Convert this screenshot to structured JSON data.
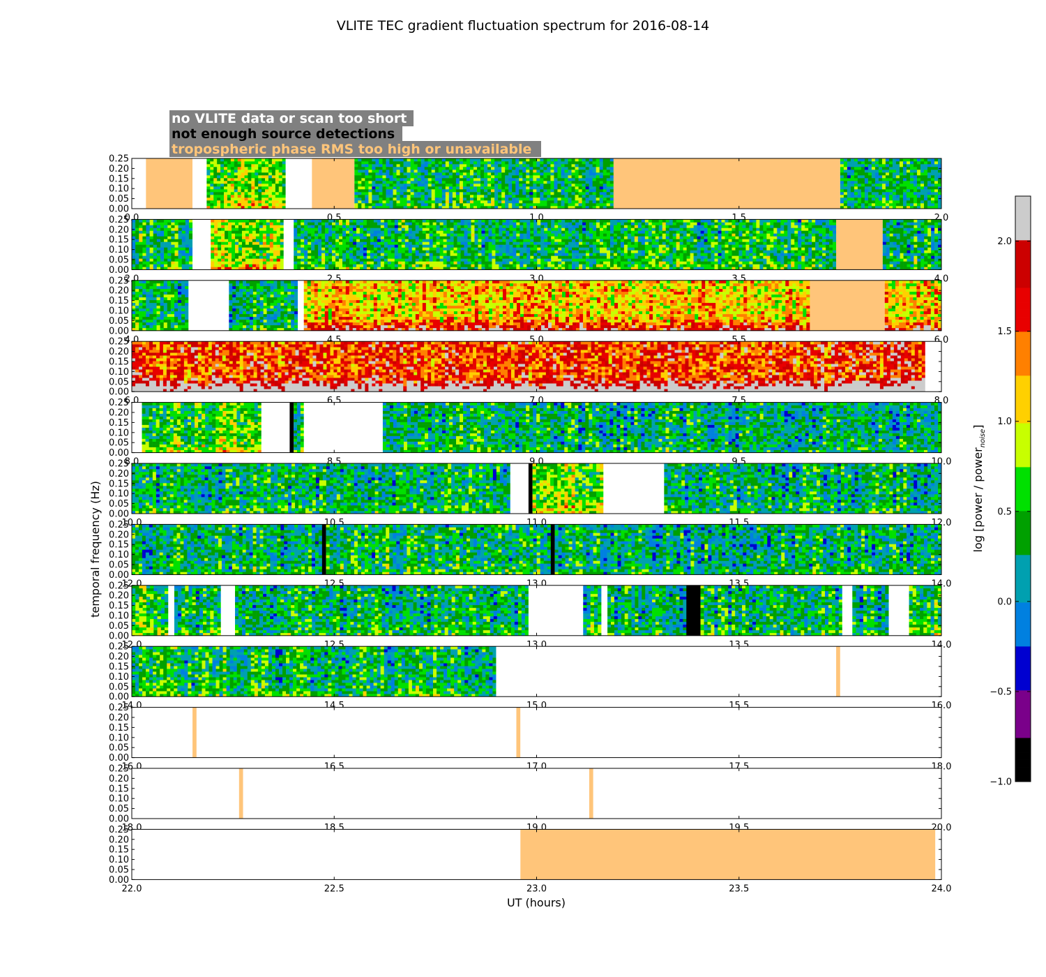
{
  "chart_data": {
    "type": "heatmap",
    "title": "VLITE TEC gradient fluctuation spectrum for 2016-08-14",
    "xlabel": "UT (hours)",
    "ylabel": "temporal frequency (Hz)",
    "colorbar_label": "log [power / power",
    "colorbar_label_subscript": "noise",
    "colorbar_label_close": "]",
    "colorbar_range": [
      -1.0,
      2.25
    ],
    "colorbar_ticks": [
      "−1.0",
      "−0.5",
      "0.0",
      "0.5",
      "1.0",
      "1.5",
      "2.0"
    ],
    "colorbar_tick_values": [
      -1.0,
      -0.5,
      0.0,
      0.5,
      1.0,
      1.5,
      2.0
    ],
    "colormap": [
      "#000000",
      "#7a008a",
      "#0000d0",
      "#0080e0",
      "#00a0b0",
      "#00a000",
      "#00e000",
      "#c8ff00",
      "#ffd000",
      "#ff8000",
      "#e80000",
      "#cc0000",
      "#cccccc"
    ],
    "ylim": [
      0.0,
      0.25
    ],
    "y_ticks": [
      "0.00",
      "0.05",
      "0.10",
      "0.15",
      "0.20",
      "0.25"
    ],
    "y_tick_values": [
      0.0,
      0.05,
      0.1,
      0.15,
      0.2,
      0.25
    ],
    "legend": [
      {
        "label": "no VLITE data or scan too short",
        "text_color": "#ffffff",
        "bg_color": "#808080"
      },
      {
        "label": "not enough source detections",
        "text_color": "#000000",
        "bg_color": "#808080"
      },
      {
        "label": "tropospheric phase RMS too high or unavailable",
        "text_color": "#ffc57a",
        "bg_color": "#808080"
      }
    ],
    "flag_colors": {
      "nodata": "#ffffff",
      "nodetect": "#000000",
      "tropo": "#ffc57a"
    },
    "panels": [
      {
        "xlim": [
          0.0,
          2.0
        ],
        "x_ticks": [
          "0.0",
          "0.5",
          "1.0",
          "1.5",
          "2.0"
        ],
        "x_tick_values": [
          0.0,
          0.5,
          1.0,
          1.5,
          2.0
        ],
        "segments": [
          {
            "start": 0.0,
            "end": 0.035,
            "kind": "nodata"
          },
          {
            "start": 0.035,
            "end": 0.15,
            "kind": "tropo"
          },
          {
            "start": 0.15,
            "end": 0.185,
            "kind": "nodata"
          },
          {
            "start": 0.185,
            "end": 0.38,
            "kind": "data",
            "level": 0.72
          },
          {
            "start": 0.38,
            "end": 0.445,
            "kind": "nodata"
          },
          {
            "start": 0.445,
            "end": 0.55,
            "kind": "tropo"
          },
          {
            "start": 0.55,
            "end": 1.19,
            "kind": "data",
            "level": 0.35
          },
          {
            "start": 1.19,
            "end": 1.75,
            "kind": "tropo"
          },
          {
            "start": 1.75,
            "end": 2.0,
            "kind": "data",
            "level": 0.3
          }
        ]
      },
      {
        "xlim": [
          2.0,
          4.0
        ],
        "x_ticks": [
          "2.0",
          "2.5",
          "3.0",
          "3.5",
          "4.0"
        ],
        "x_tick_values": [
          2.0,
          2.5,
          3.0,
          3.5,
          4.0
        ],
        "segments": [
          {
            "start": 2.0,
            "end": 2.15,
            "kind": "data",
            "level": 0.35
          },
          {
            "start": 2.15,
            "end": 2.195,
            "kind": "nodata"
          },
          {
            "start": 2.195,
            "end": 2.375,
            "kind": "data",
            "level": 0.75
          },
          {
            "start": 2.375,
            "end": 2.4,
            "kind": "nodata"
          },
          {
            "start": 2.4,
            "end": 3.74,
            "kind": "data",
            "level": 0.38
          },
          {
            "start": 3.74,
            "end": 3.855,
            "kind": "tropo"
          },
          {
            "start": 3.855,
            "end": 4.0,
            "kind": "data",
            "level": 0.3
          }
        ]
      },
      {
        "xlim": [
          4.0,
          6.0
        ],
        "x_ticks": [
          "4.0",
          "4.5",
          "5.0",
          "5.5",
          "6.0"
        ],
        "x_tick_values": [
          4.0,
          4.5,
          5.0,
          5.5,
          6.0
        ],
        "segments": [
          {
            "start": 4.0,
            "end": 4.14,
            "kind": "data",
            "level": 0.38
          },
          {
            "start": 4.14,
            "end": 4.24,
            "kind": "nodata"
          },
          {
            "start": 4.24,
            "end": 4.41,
            "kind": "data",
            "level": 0.3
          },
          {
            "start": 4.41,
            "end": 4.425,
            "kind": "nodata"
          },
          {
            "start": 4.425,
            "end": 5.675,
            "kind": "data",
            "level": 1.15
          },
          {
            "start": 5.675,
            "end": 5.86,
            "kind": "tropo"
          },
          {
            "start": 5.86,
            "end": 6.0,
            "kind": "data",
            "level": 1.1
          }
        ]
      },
      {
        "xlim": [
          6.0,
          8.0
        ],
        "x_ticks": [
          "6.0",
          "6.5",
          "7.0",
          "7.5",
          "8.0"
        ],
        "x_tick_values": [
          6.0,
          6.5,
          7.0,
          7.5,
          8.0
        ],
        "segments": [
          {
            "start": 6.0,
            "end": 7.96,
            "kind": "data",
            "level": 1.55
          },
          {
            "start": 7.96,
            "end": 8.0,
            "kind": "nodata"
          }
        ]
      },
      {
        "xlim": [
          8.0,
          10.0
        ],
        "x_ticks": [
          "8.0",
          "8.5",
          "9.0",
          "9.5",
          "10.0"
        ],
        "x_tick_values": [
          8.0,
          8.5,
          9.0,
          9.5,
          10.0
        ],
        "segments": [
          {
            "start": 8.0,
            "end": 8.025,
            "kind": "nodata"
          },
          {
            "start": 8.025,
            "end": 8.32,
            "kind": "data",
            "level": 0.6
          },
          {
            "start": 8.32,
            "end": 8.39,
            "kind": "nodata"
          },
          {
            "start": 8.39,
            "end": 8.4,
            "kind": "nodetect"
          },
          {
            "start": 8.4,
            "end": 8.425,
            "kind": "data",
            "level": 0.4
          },
          {
            "start": 8.425,
            "end": 8.62,
            "kind": "nodata"
          },
          {
            "start": 8.62,
            "end": 10.0,
            "kind": "data",
            "level": 0.25
          }
        ]
      },
      {
        "xlim": [
          10.0,
          12.0
        ],
        "x_ticks": [
          "10.0",
          "10.5",
          "11.0",
          "11.5",
          "12.0"
        ],
        "x_tick_values": [
          10.0,
          10.5,
          11.0,
          11.5,
          12.0
        ],
        "segments": [
          {
            "start": 10.0,
            "end": 10.935,
            "kind": "data",
            "level": 0.3
          },
          {
            "start": 10.935,
            "end": 10.98,
            "kind": "nodata"
          },
          {
            "start": 10.98,
            "end": 10.99,
            "kind": "nodetect"
          },
          {
            "start": 10.99,
            "end": 11.165,
            "kind": "data",
            "level": 0.7
          },
          {
            "start": 11.165,
            "end": 11.315,
            "kind": "nodata"
          },
          {
            "start": 11.315,
            "end": 12.0,
            "kind": "data",
            "level": 0.25
          }
        ]
      },
      {
        "xlim": [
          12.0,
          14.0
        ],
        "x_ticks": [
          "12.0",
          "12.5",
          "13.0",
          "13.5",
          "14.0"
        ],
        "x_tick_values": [
          12.0,
          12.5,
          13.0,
          13.5,
          14.0
        ],
        "segments": [
          {
            "start": 12.0,
            "end": 12.47,
            "kind": "data",
            "level": 0.3
          },
          {
            "start": 12.47,
            "end": 12.48,
            "kind": "nodetect"
          },
          {
            "start": 12.48,
            "end": 13.035,
            "kind": "data",
            "level": 0.35
          },
          {
            "start": 13.035,
            "end": 13.045,
            "kind": "nodetect"
          },
          {
            "start": 13.045,
            "end": 14.0,
            "kind": "data",
            "level": 0.25
          }
        ]
      },
      {
        "xlim": [
          12.0,
          14.0
        ],
        "x_ticks": [
          "12.0",
          "12.5",
          "13.0",
          "13.5",
          "14.0"
        ],
        "x_tick_values": [
          12.0,
          12.5,
          13.0,
          13.5,
          14.0
        ],
        "segments": [
          {
            "start": 12.0,
            "end": 12.09,
            "kind": "data",
            "level": 0.55
          },
          {
            "start": 12.09,
            "end": 12.105,
            "kind": "nodata"
          },
          {
            "start": 12.105,
            "end": 12.22,
            "kind": "data",
            "level": 0.35
          },
          {
            "start": 12.22,
            "end": 12.255,
            "kind": "nodata"
          },
          {
            "start": 12.255,
            "end": 12.98,
            "kind": "data",
            "level": 0.3
          },
          {
            "start": 12.98,
            "end": 13.115,
            "kind": "nodata"
          },
          {
            "start": 13.115,
            "end": 13.16,
            "kind": "data",
            "level": 0.4
          },
          {
            "start": 13.16,
            "end": 13.175,
            "kind": "nodata"
          },
          {
            "start": 13.175,
            "end": 13.37,
            "kind": "data",
            "level": 0.25
          },
          {
            "start": 13.37,
            "end": 13.405,
            "kind": "nodetect"
          },
          {
            "start": 13.405,
            "end": 13.755,
            "kind": "data",
            "level": 0.3
          },
          {
            "start": 13.755,
            "end": 13.78,
            "kind": "nodata"
          },
          {
            "start": 13.78,
            "end": 13.87,
            "kind": "data",
            "level": 0.25
          },
          {
            "start": 13.87,
            "end": 13.92,
            "kind": "nodata"
          },
          {
            "start": 13.92,
            "end": 14.0,
            "kind": "data",
            "level": 0.4
          }
        ]
      },
      {
        "xlim": [
          14.0,
          16.0
        ],
        "x_ticks": [
          "14.0",
          "14.5",
          "15.0",
          "15.5",
          "16.0"
        ],
        "x_tick_values": [
          14.0,
          14.5,
          15.0,
          15.5,
          16.0
        ],
        "segments": [
          {
            "start": 14.0,
            "end": 14.9,
            "kind": "data",
            "level": 0.35
          },
          {
            "start": 14.9,
            "end": 15.74,
            "kind": "nodata"
          },
          {
            "start": 15.74,
            "end": 15.75,
            "kind": "tropo"
          },
          {
            "start": 15.75,
            "end": 16.0,
            "kind": "nodata"
          }
        ]
      },
      {
        "xlim": [
          16.0,
          18.0
        ],
        "x_ticks": [
          "16.0",
          "16.5",
          "17.0",
          "17.5",
          "18.0"
        ],
        "x_tick_values": [
          16.0,
          16.5,
          17.0,
          17.5,
          18.0
        ],
        "segments": [
          {
            "start": 16.0,
            "end": 16.15,
            "kind": "nodata"
          },
          {
            "start": 16.15,
            "end": 16.16,
            "kind": "tropo"
          },
          {
            "start": 16.16,
            "end": 16.95,
            "kind": "nodata"
          },
          {
            "start": 16.95,
            "end": 16.96,
            "kind": "tropo"
          },
          {
            "start": 16.96,
            "end": 18.0,
            "kind": "nodata"
          }
        ]
      },
      {
        "xlim": [
          18.0,
          20.0
        ],
        "x_ticks": [
          "18.0",
          "18.5",
          "19.0",
          "19.5",
          "20.0"
        ],
        "x_tick_values": [
          18.0,
          18.5,
          19.0,
          19.5,
          20.0
        ],
        "segments": [
          {
            "start": 18.0,
            "end": 18.265,
            "kind": "nodata"
          },
          {
            "start": 18.265,
            "end": 18.275,
            "kind": "tropo"
          },
          {
            "start": 18.275,
            "end": 19.13,
            "kind": "nodata"
          },
          {
            "start": 19.13,
            "end": 19.14,
            "kind": "tropo"
          },
          {
            "start": 19.14,
            "end": 20.0,
            "kind": "nodata"
          }
        ]
      },
      {
        "xlim": [
          22.0,
          24.0
        ],
        "x_ticks": [
          "22.0",
          "22.5",
          "23.0",
          "23.5",
          "24.0"
        ],
        "x_tick_values": [
          22.0,
          22.5,
          23.0,
          23.5,
          24.0
        ],
        "segments": [
          {
            "start": 22.0,
            "end": 22.96,
            "kind": "nodata"
          },
          {
            "start": 22.96,
            "end": 23.985,
            "kind": "tropo"
          },
          {
            "start": 23.985,
            "end": 24.0,
            "kind": "nodata"
          }
        ]
      }
    ]
  }
}
